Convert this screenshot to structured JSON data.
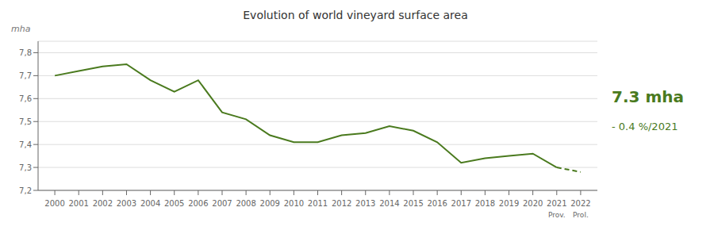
{
  "chart_data": {
    "type": "line",
    "title": "Evolution of world vineyard surface area",
    "y_label": "mha",
    "x": [
      2000,
      2001,
      2002,
      2003,
      2004,
      2005,
      2006,
      2007,
      2008,
      2009,
      2010,
      2011,
      2012,
      2013,
      2014,
      2015,
      2016,
      2017,
      2018,
      2019,
      2020,
      2021,
      2022
    ],
    "series": [
      {
        "color": "#4a7a1e",
        "line_style": "solid",
        "values": [
          7.7,
          7.72,
          7.74,
          7.75,
          7.68,
          7.63,
          7.68,
          7.54,
          7.51,
          7.44,
          7.41,
          7.41,
          7.44,
          7.45,
          7.48,
          7.46,
          7.41,
          7.32,
          7.34,
          7.35,
          7.36,
          7.3,
          null
        ]
      },
      {
        "color": "#4a7a1e",
        "line_style": "dashed",
        "values": [
          null,
          null,
          null,
          null,
          null,
          null,
          null,
          null,
          null,
          null,
          null,
          null,
          null,
          null,
          null,
          null,
          null,
          null,
          null,
          null,
          null,
          7.3,
          7.28
        ]
      }
    ],
    "xlim": [
      1999.3,
      2022.7
    ],
    "xticks": [
      2000,
      2001,
      2002,
      2003,
      2004,
      2005,
      2006,
      2007,
      2008,
      2009,
      2010,
      2011,
      2012,
      2013,
      2014,
      2015,
      2016,
      2017,
      2018,
      2019,
      2020,
      2021,
      2022
    ],
    "ylim": [
      7.2,
      7.85
    ],
    "yticks": [
      {
        "value": 7.2,
        "label": "7,2"
      },
      {
        "value": 7.3,
        "label": "7,3"
      },
      {
        "value": 7.4,
        "label": "7,4"
      },
      {
        "value": 7.5,
        "label": "7,5"
      },
      {
        "value": 7.6,
        "label": "7,6"
      },
      {
        "value": 7.7,
        "label": "7,7"
      },
      {
        "value": 7.8,
        "label": "7,8"
      }
    ],
    "grid": "y",
    "annotations": [
      {
        "text": "Prov.",
        "x": 2021
      },
      {
        "text": "Prol.",
        "x": 2022
      },
      {
        "text": "7.3 mha",
        "color": "#4a7a1e"
      },
      {
        "text": "- 0.4 %/2021",
        "color": "#4a7a1e"
      }
    ]
  }
}
